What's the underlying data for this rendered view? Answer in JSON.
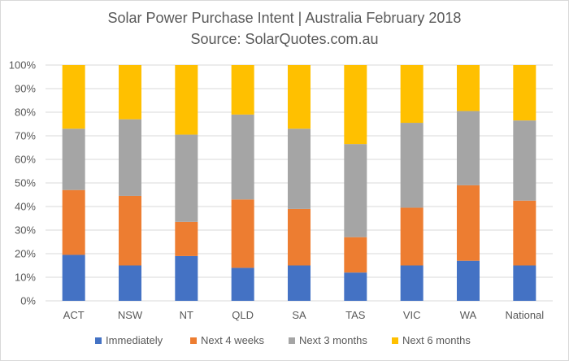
{
  "chart_data": {
    "type": "bar",
    "stacked": true,
    "title": "Solar Power Purchase Intent | Australia February 2018",
    "subtitle": "Source: SolarQuotes.com.au",
    "categories": [
      "ACT",
      "NSW",
      "NT",
      "QLD",
      "SA",
      "TAS",
      "VIC",
      "WA",
      "National"
    ],
    "ylim": [
      0,
      100
    ],
    "yticks": [
      "0%",
      "10%",
      "20%",
      "30%",
      "40%",
      "50%",
      "60%",
      "70%",
      "80%",
      "90%",
      "100%"
    ],
    "grid": true,
    "legend_position": "bottom",
    "series": [
      {
        "name": "Immediately",
        "color": "#4472C4",
        "values": [
          19.5,
          15,
          19,
          14,
          15,
          12,
          15,
          17,
          15
        ]
      },
      {
        "name": "Next 4 weeks",
        "color": "#ED7D31",
        "values": [
          27.5,
          29.5,
          14.5,
          29,
          24,
          15,
          24.5,
          32,
          27.5
        ]
      },
      {
        "name": "Next 3 months",
        "color": "#A5A5A5",
        "values": [
          26,
          32.5,
          37,
          36,
          34,
          39.5,
          36,
          31.5,
          34
        ]
      },
      {
        "name": "Next 6 months",
        "color": "#FFC000",
        "values": [
          27,
          23,
          29.5,
          21,
          27,
          33.5,
          24.5,
          19.5,
          23.5
        ]
      }
    ]
  }
}
